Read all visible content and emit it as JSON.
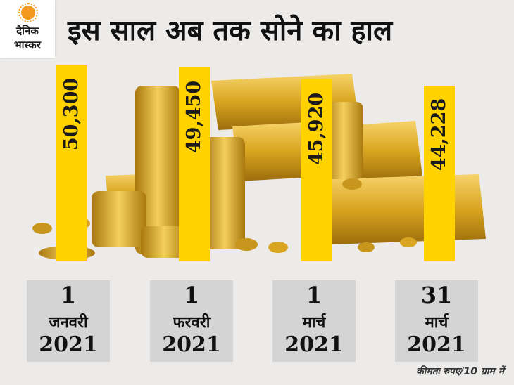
{
  "logo": {
    "line1": "दैनिक",
    "line2": "भास्कर",
    "sun_color": "#f39a1e"
  },
  "title": "इस साल अब तक सोने का हाल",
  "note": "कीमतः रुपए/10 ग्राम में",
  "colors": {
    "bar": "#ffd200",
    "label_box": "#d4d4d4",
    "gold": "#d9a520",
    "background": "#ecebe9"
  },
  "decorative_image": "gold-bars-and-coins",
  "chart_data": {
    "type": "bar",
    "categories": [
      {
        "day": "1",
        "month": "जनवरी",
        "year": "2021"
      },
      {
        "day": "1",
        "month": "फरवरी",
        "year": "2021"
      },
      {
        "day": "1",
        "month": "मार्च",
        "year": "2021"
      },
      {
        "day": "31",
        "month": "मार्च",
        "year": "2021"
      }
    ],
    "values": [
      50300,
      49450,
      45920,
      44228
    ],
    "value_labels": [
      "50,300",
      "49,450",
      "45,920",
      "44,228"
    ],
    "title": "इस साल अब तक सोने का हाल",
    "unit_note": "कीमतः रुपए/10 ग्राम में",
    "grid": false
  }
}
